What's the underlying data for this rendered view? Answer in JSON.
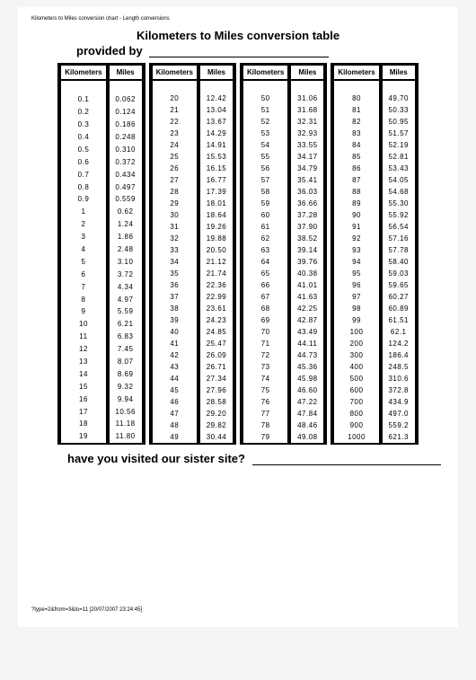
{
  "header_small": "Kilometers to Miles conversion chart - Length conversions",
  "title": "Kilometers to Miles conversion table",
  "subtitle": "provided by",
  "col_km": "Kilometers",
  "col_mi": "Miles",
  "sister": "have you visited our sister site?",
  "footer_small": "?type=2&from=3&to=11 [20/07/2007 23:24:45]",
  "tables": [
    {
      "rows": [
        [
          "0.1",
          "0.062"
        ],
        [
          "0.2",
          "0.124"
        ],
        [
          "0.3",
          "0.186"
        ],
        [
          "0.4",
          "0.248"
        ],
        [
          "0.5",
          "0.310"
        ],
        [
          "0.6",
          "0.372"
        ],
        [
          "0.7",
          "0.434"
        ],
        [
          "0.8",
          "0.497"
        ],
        [
          "0.9",
          "0.559"
        ],
        [
          "1",
          "0.62"
        ],
        [
          "2",
          "1.24"
        ],
        [
          "3",
          "1.86"
        ],
        [
          "4",
          "2.48"
        ],
        [
          "5",
          "3.10"
        ],
        [
          "6",
          "3.72"
        ],
        [
          "7",
          "4.34"
        ],
        [
          "8",
          "4.97"
        ],
        [
          "9",
          "5.59"
        ],
        [
          "10",
          "6.21"
        ],
        [
          "11",
          "6.83"
        ],
        [
          "12",
          "7.45"
        ],
        [
          "13",
          "8.07"
        ],
        [
          "14",
          "8.69"
        ],
        [
          "15",
          "9.32"
        ],
        [
          "16",
          "9.94"
        ],
        [
          "17",
          "10.56"
        ],
        [
          "18",
          "11.18"
        ],
        [
          "19",
          "11.80"
        ]
      ]
    },
    {
      "rows": [
        [
          "20",
          "12.42"
        ],
        [
          "21",
          "13.04"
        ],
        [
          "22",
          "13.67"
        ],
        [
          "23",
          "14.29"
        ],
        [
          "24",
          "14.91"
        ],
        [
          "25",
          "15.53"
        ],
        [
          "26",
          "16.15"
        ],
        [
          "27",
          "16.77"
        ],
        [
          "28",
          "17.39"
        ],
        [
          "29",
          "18.01"
        ],
        [
          "30",
          "18.64"
        ],
        [
          "31",
          "19.26"
        ],
        [
          "32",
          "19.88"
        ],
        [
          "33",
          "20.50"
        ],
        [
          "34",
          "21.12"
        ],
        [
          "35",
          "21.74"
        ],
        [
          "36",
          "22.36"
        ],
        [
          "37",
          "22.99"
        ],
        [
          "38",
          "23.61"
        ],
        [
          "39",
          "24.23"
        ],
        [
          "40",
          "24.85"
        ],
        [
          "41",
          "25.47"
        ],
        [
          "42",
          "26.09"
        ],
        [
          "43",
          "26.71"
        ],
        [
          "44",
          "27.34"
        ],
        [
          "45",
          "27.96"
        ],
        [
          "46",
          "28.58"
        ],
        [
          "47",
          "29.20"
        ],
        [
          "48",
          "29.82"
        ],
        [
          "49",
          "30.44"
        ]
      ]
    },
    {
      "rows": [
        [
          "50",
          "31.06"
        ],
        [
          "51",
          "31.68"
        ],
        [
          "52",
          "32.31"
        ],
        [
          "53",
          "32.93"
        ],
        [
          "54",
          "33.55"
        ],
        [
          "55",
          "34.17"
        ],
        [
          "56",
          "34.79"
        ],
        [
          "57",
          "35.41"
        ],
        [
          "58",
          "36.03"
        ],
        [
          "59",
          "36.66"
        ],
        [
          "60",
          "37.28"
        ],
        [
          "61",
          "37.90"
        ],
        [
          "62",
          "38.52"
        ],
        [
          "63",
          "39.14"
        ],
        [
          "64",
          "39.76"
        ],
        [
          "65",
          "40.38"
        ],
        [
          "66",
          "41.01"
        ],
        [
          "67",
          "41.63"
        ],
        [
          "68",
          "42.25"
        ],
        [
          "69",
          "42.87"
        ],
        [
          "70",
          "43.49"
        ],
        [
          "71",
          "44.11"
        ],
        [
          "72",
          "44.73"
        ],
        [
          "73",
          "45.36"
        ],
        [
          "74",
          "45.98"
        ],
        [
          "75",
          "46.60"
        ],
        [
          "76",
          "47.22"
        ],
        [
          "77",
          "47.84"
        ],
        [
          "78",
          "48.46"
        ],
        [
          "79",
          "49.08"
        ]
      ]
    },
    {
      "rows": [
        [
          "80",
          "49.70"
        ],
        [
          "81",
          "50.33"
        ],
        [
          "82",
          "50.95"
        ],
        [
          "83",
          "51.57"
        ],
        [
          "84",
          "52.19"
        ],
        [
          "85",
          "52.81"
        ],
        [
          "86",
          "53.43"
        ],
        [
          "87",
          "54.05"
        ],
        [
          "88",
          "54.68"
        ],
        [
          "89",
          "55.30"
        ],
        [
          "90",
          "55.92"
        ],
        [
          "91",
          "56.54"
        ],
        [
          "92",
          "57.16"
        ],
        [
          "93",
          "57.78"
        ],
        [
          "94",
          "58.40"
        ],
        [
          "95",
          "59.03"
        ],
        [
          "96",
          "59.65"
        ],
        [
          "97",
          "60.27"
        ],
        [
          "98",
          "60.89"
        ],
        [
          "99",
          "61.51"
        ],
        [
          "100",
          "62.1"
        ],
        [
          "200",
          "124.2"
        ],
        [
          "300",
          "186.4"
        ],
        [
          "400",
          "248.5"
        ],
        [
          "500",
          "310.6"
        ],
        [
          "600",
          "372.8"
        ],
        [
          "700",
          "434.9"
        ],
        [
          "800",
          "497.0"
        ],
        [
          "900",
          "559.2"
        ],
        [
          "1000",
          "621.3"
        ]
      ]
    }
  ]
}
